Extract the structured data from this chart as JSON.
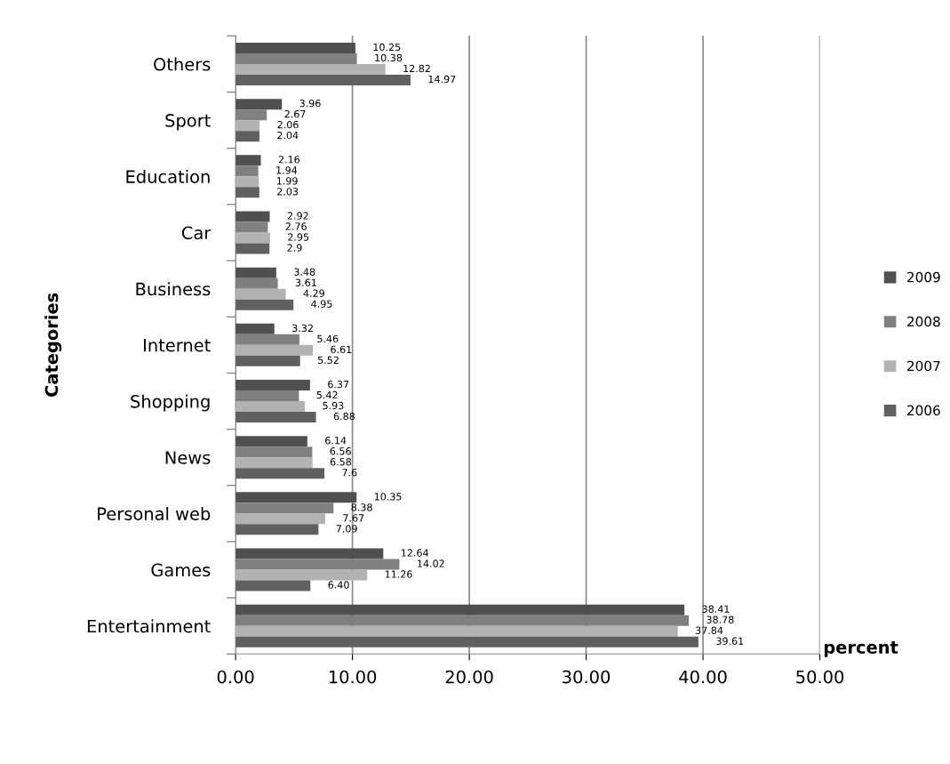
{
  "chart_data": {
    "type": "bar",
    "orientation": "horizontal",
    "xlabel": "percent",
    "ylabel": "Categories",
    "categories": [
      "Others",
      "Sport",
      "Education",
      "Car",
      "Business",
      "Internet",
      "Shopping",
      "News",
      "Personal web",
      "Games",
      "Entertainment"
    ],
    "series": [
      {
        "name": "2009",
        "color": "#505050",
        "values": [
          10.25,
          3.96,
          2.16,
          2.92,
          3.48,
          3.32,
          6.37,
          6.14,
          10.35,
          12.64,
          38.41
        ],
        "value_labels": [
          "10.25",
          "3.96",
          "2.16",
          "2.92",
          "3.48",
          "3.32",
          "6.37",
          "6.14",
          "10.35",
          "12.64",
          "38.41"
        ]
      },
      {
        "name": "2008",
        "color": "#808080",
        "values": [
          10.38,
          2.67,
          1.94,
          2.76,
          3.61,
          5.46,
          5.42,
          6.56,
          8.38,
          14.02,
          38.78
        ],
        "value_labels": [
          "10.38",
          "2.67",
          "1.94",
          "2.76",
          "3.61",
          "5.46",
          "5.42",
          "6.56",
          "8.38",
          "14.02",
          "38.78"
        ]
      },
      {
        "name": "2007",
        "color": "#b2b2b2",
        "values": [
          12.82,
          2.06,
          1.99,
          2.95,
          4.29,
          6.61,
          5.93,
          6.58,
          7.67,
          11.26,
          37.84
        ],
        "value_labels": [
          "12.82",
          "2.06",
          "1.99",
          "2.95",
          "4.29",
          "6.61",
          "5.93",
          "6.58",
          "7.67",
          "11.26",
          "37.84"
        ]
      },
      {
        "name": "2006",
        "color": "#606060",
        "values": [
          14.97,
          2.04,
          2.03,
          2.9,
          4.95,
          5.52,
          6.88,
          7.6,
          7.09,
          6.4,
          39.61
        ],
        "value_labels": [
          "14.97",
          "2.04",
          "2.03",
          "2.9",
          "4.95",
          "5.52",
          "6.88",
          "7.6",
          "7.09",
          "6.40",
          "39.61"
        ]
      }
    ],
    "xlim": [
      0,
      50
    ],
    "xticks": [
      {
        "value": 0,
        "label": "0.00"
      },
      {
        "value": 10,
        "label": "10.00"
      },
      {
        "value": 20,
        "label": "20.00"
      },
      {
        "value": 30,
        "label": "30.00"
      },
      {
        "value": 40,
        "label": "40.00"
      },
      {
        "value": 50,
        "label": "50.00"
      }
    ],
    "grid": "x",
    "legend": "right"
  }
}
